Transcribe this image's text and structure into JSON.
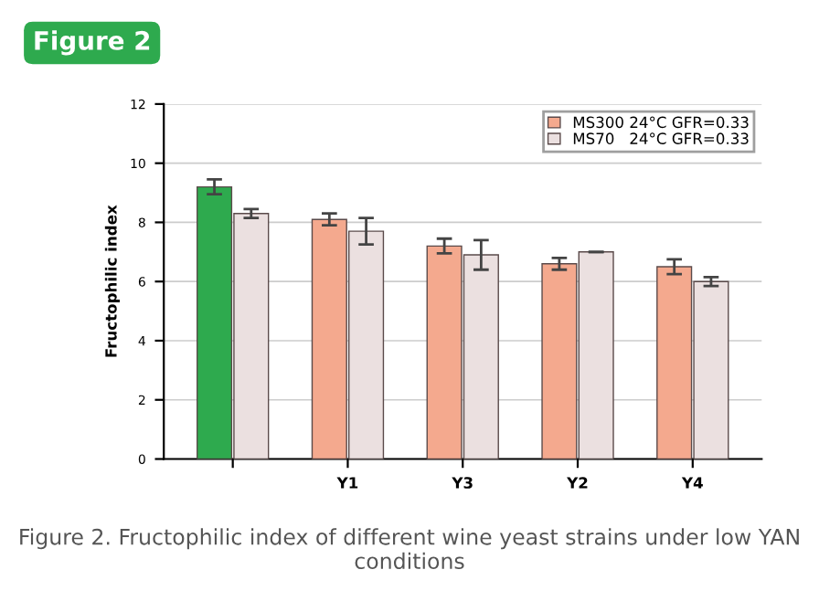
{
  "chart_data": {
    "type": "bar",
    "title": "Figure 2",
    "ylabel": "Fructophilic index",
    "categories": [
      null,
      "Y1",
      "Y3",
      "Y2",
      "Y4"
    ],
    "series": [
      {
        "name": "MS300 24°C GFR=0.33",
        "color": "#f4a98e",
        "colors": [
          "#2eaa4e",
          "#f4a98e",
          "#f4a98e",
          "#f4a98e",
          "#f4a98e"
        ],
        "values": [
          9.2,
          8.1,
          7.2,
          6.6,
          6.5
        ],
        "errors": [
          0.25,
          0.2,
          0.25,
          0.2,
          0.25
        ]
      },
      {
        "name": "MS70   24°C GFR=0.33",
        "color": "#ebe0e0",
        "values": [
          8.3,
          7.7,
          6.9,
          7.0,
          6.0
        ],
        "errors": [
          0.15,
          0.45,
          0.5,
          null,
          0.15
        ]
      }
    ],
    "ylim": [
      0,
      12
    ],
    "yticks": [
      0,
      2,
      4,
      6,
      8,
      10,
      12
    ],
    "grid": "y",
    "legend": "top right",
    "annotations": [
      "Figure 2. Fructophilic index of different wine yeast strains under low YAN conditions"
    ]
  }
}
